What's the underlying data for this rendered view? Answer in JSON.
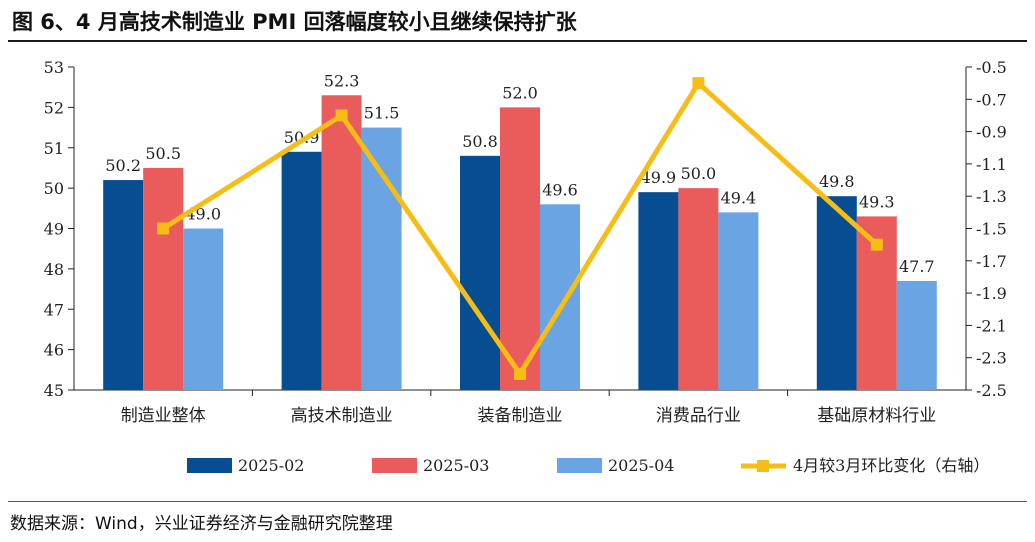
{
  "title": "图 6、4 月高技术制造业 PMI 回落幅度较小且继续保持扩张",
  "source": "数据来源：Wind，兴业证券经济与金融研究院整理",
  "colors": {
    "s1": "#074d91",
    "s2": "#ea5b5b",
    "s3": "#6aa4e3",
    "line": "#f6bd16"
  },
  "chart_data": {
    "type": "bar",
    "categories": [
      "制造业整体",
      "高技术制造业",
      "装备制造业",
      "消费品行业",
      "基础原材料行业"
    ],
    "series": [
      {
        "name": "2025-02",
        "values": [
          50.2,
          50.9,
          50.8,
          49.9,
          49.8
        ],
        "labels": [
          "50.2",
          "50.9",
          "50.8",
          "49.9",
          "49.8"
        ]
      },
      {
        "name": "2025-03",
        "values": [
          50.5,
          52.3,
          52.0,
          50.0,
          49.3
        ],
        "labels": [
          "50.5",
          "52.3",
          "52.0",
          "50.0",
          "49.3"
        ]
      },
      {
        "name": "2025-04",
        "values": [
          49.0,
          51.5,
          49.6,
          49.4,
          47.7
        ],
        "labels": [
          "49.0",
          "51.5",
          "49.6",
          "49.4",
          "47.7"
        ]
      }
    ],
    "line_series": {
      "name": "4月较3月环比变化（右轴）",
      "type": "line",
      "axis": "right",
      "values": [
        -1.5,
        -0.8,
        -2.4,
        -0.6,
        -1.6
      ]
    },
    "ylim": [
      45,
      53
    ],
    "yticks": [
      "53",
      "52",
      "51",
      "50",
      "49",
      "48",
      "47",
      "46",
      "45"
    ],
    "y2lim": [
      -2.5,
      -0.5
    ],
    "y2ticks": [
      "-0.5",
      "-0.7",
      "-0.9",
      "-1.1",
      "-1.3",
      "-1.5",
      "-1.7",
      "-1.9",
      "-2.1",
      "-2.3",
      "-2.5"
    ]
  }
}
